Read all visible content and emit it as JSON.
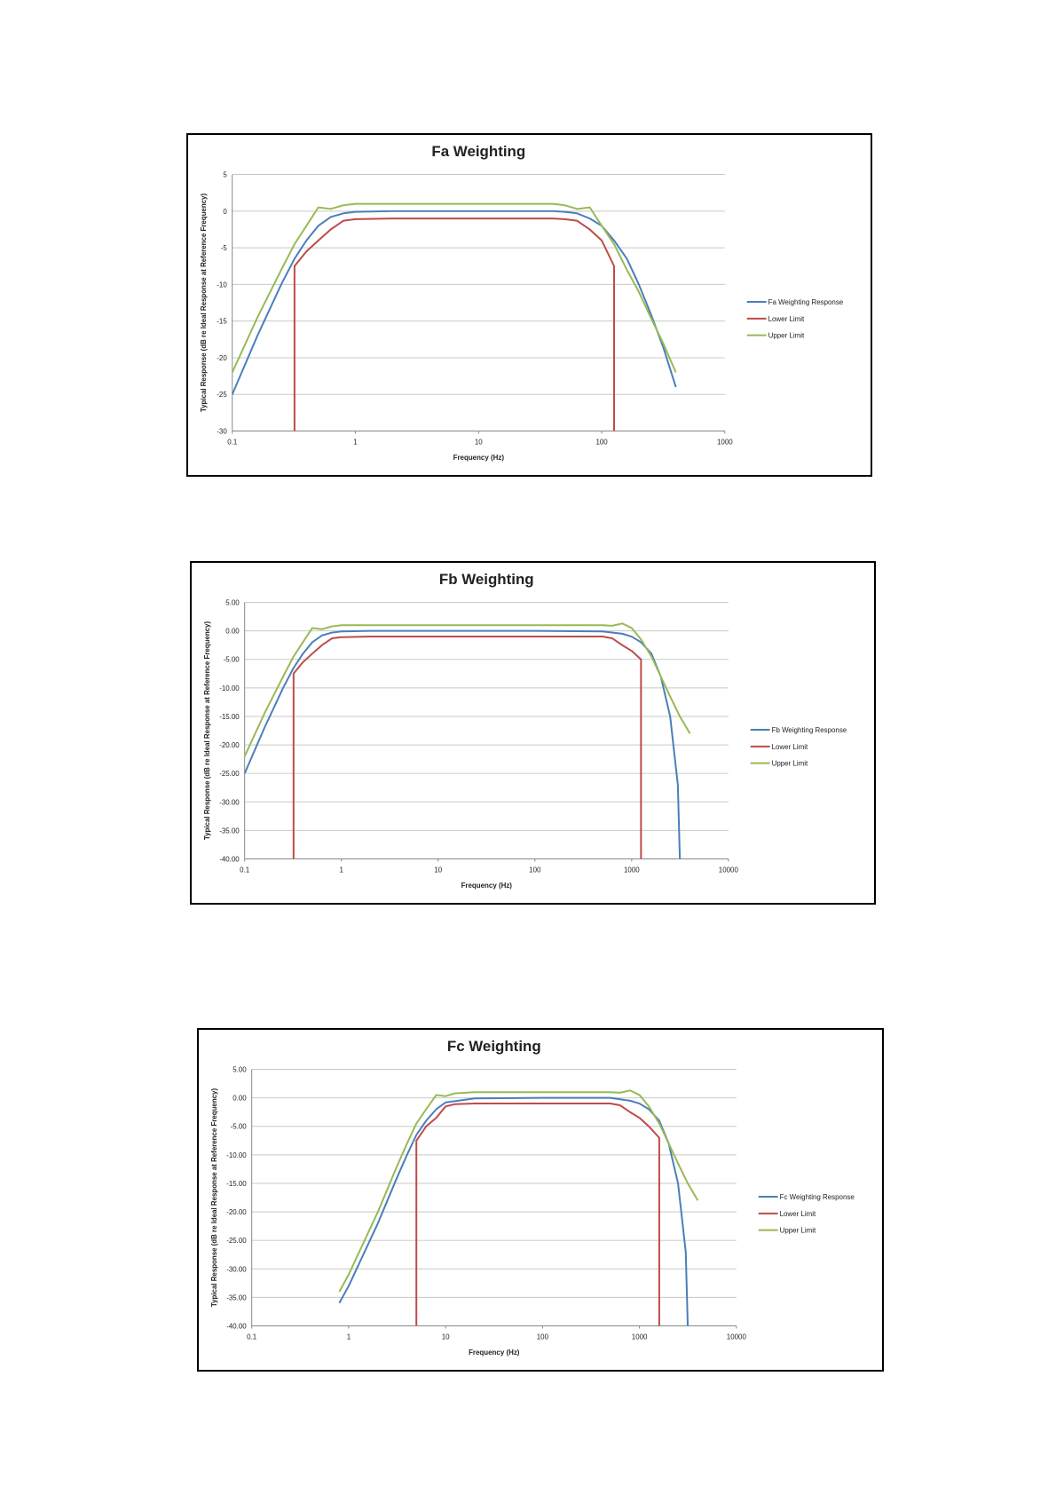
{
  "chart_data": [
    {
      "type": "line",
      "title": "Fa Weighting",
      "xlabel": "Frequency (Hz)",
      "ylabel": "Typical Response (dB re Ideal Response at Reference Frequency)",
      "xscale": "log",
      "xlim": [
        0.1,
        1000
      ],
      "ylim": [
        -30,
        5
      ],
      "x_tick_labels": [
        "0.1",
        "1",
        "10",
        "100",
        "1000"
      ],
      "y_ticks": [
        5,
        0,
        -5,
        -10,
        -15,
        -20,
        -25,
        -30
      ],
      "y_tick_labels": [
        "5",
        "0",
        "-5",
        "-10",
        "-15",
        "-20",
        "-25",
        "-30"
      ],
      "legend_position": "right",
      "series": [
        {
          "name": "Fa Weighting Response",
          "color": "#4a7ebb",
          "x": [
            0.1,
            0.16,
            0.25,
            0.32,
            0.4,
            0.5,
            0.63,
            0.8,
            1,
            2,
            5,
            10,
            20,
            40,
            50,
            63,
            80,
            100,
            126,
            160,
            200,
            250,
            315,
            400
          ],
          "y": [
            -25,
            -17,
            -10,
            -6.5,
            -4,
            -2,
            -0.8,
            -0.3,
            -0.1,
            0,
            0,
            0,
            0,
            0,
            -0.1,
            -0.3,
            -1,
            -2,
            -4,
            -6.5,
            -10,
            -14,
            -18.5,
            -24
          ]
        },
        {
          "name": "Lower Limit",
          "color": "#be4b48",
          "x": [
            0.32,
            0.32,
            0.4,
            0.5,
            0.63,
            0.8,
            1,
            2,
            10,
            40,
            50,
            63,
            80,
            100,
            126,
            126
          ],
          "y": [
            -30,
            -7.5,
            -5.5,
            -4,
            -2.5,
            -1.3,
            -1.1,
            -1,
            -1,
            -1,
            -1.1,
            -1.3,
            -2.5,
            -4,
            -7.5,
            -30
          ]
        },
        {
          "name": "Upper Limit",
          "color": "#98b954",
          "x": [
            0.1,
            0.16,
            0.25,
            0.32,
            0.4,
            0.5,
            0.63,
            0.8,
            1,
            2,
            10,
            40,
            50,
            63,
            80,
            100,
            126,
            160,
            200,
            250,
            315,
            400
          ],
          "y": [
            -22,
            -14.5,
            -8,
            -4.5,
            -2,
            0.5,
            0.3,
            0.8,
            1,
            1,
            1,
            1,
            0.8,
            0.3,
            0.5,
            -2,
            -4.5,
            -8,
            -11,
            -14.5,
            -18,
            -22
          ]
        }
      ]
    },
    {
      "type": "line",
      "title": "Fb Weighting",
      "xlabel": "Frequency (Hz)",
      "ylabel": "Typical Response (dB re Ideal Response at Reference Frequency)",
      "xscale": "log",
      "xlim": [
        0.1,
        10000
      ],
      "ylim": [
        -40,
        5
      ],
      "x_tick_labels": [
        "0.1",
        "1",
        "10",
        "100",
        "1000",
        "10000"
      ],
      "y_ticks": [
        5,
        0,
        -5,
        -10,
        -15,
        -20,
        -25,
        -30,
        -35,
        -40
      ],
      "y_tick_labels": [
        "5.00",
        "0.00",
        "-5.00",
        "-10.00",
        "-15.00",
        "-20.00",
        "-25.00",
        "-30.00",
        "-35.00",
        "-40.00"
      ],
      "legend_position": "right",
      "series": [
        {
          "name": "Fb Weighting Response",
          "color": "#4a7ebb",
          "x": [
            0.1,
            0.16,
            0.25,
            0.32,
            0.4,
            0.5,
            0.63,
            0.8,
            1,
            2,
            10,
            100,
            500,
            800,
            1000,
            1250,
            1600,
            2000,
            2500,
            3000,
            3150
          ],
          "y": [
            -25,
            -17,
            -10,
            -6.5,
            -4,
            -2,
            -0.8,
            -0.3,
            -0.1,
            0,
            0,
            0,
            -0.1,
            -0.5,
            -1,
            -2,
            -4,
            -8,
            -15,
            -27,
            -40
          ]
        },
        {
          "name": "Lower Limit",
          "color": "#be4b48",
          "x": [
            0.32,
            0.32,
            0.4,
            0.5,
            0.63,
            0.8,
            1,
            2,
            10,
            100,
            500,
            630,
            800,
            1000,
            1250,
            1250
          ],
          "y": [
            -40,
            -7.5,
            -5.5,
            -4,
            -2.5,
            -1.3,
            -1.1,
            -1,
            -1,
            -1,
            -1,
            -1.3,
            -2.5,
            -3.5,
            -5,
            -40
          ]
        },
        {
          "name": "Upper Limit",
          "color": "#98b954",
          "x": [
            0.1,
            0.16,
            0.25,
            0.32,
            0.4,
            0.5,
            0.63,
            0.8,
            1,
            2,
            10,
            100,
            500,
            630,
            800,
            1000,
            1250,
            1600,
            2000,
            2500,
            3150,
            4000
          ],
          "y": [
            -22,
            -14.5,
            -8,
            -4.5,
            -2,
            0.5,
            0.3,
            0.8,
            1,
            1,
            1,
            1,
            1,
            0.9,
            1.3,
            0.5,
            -1.5,
            -4.5,
            -8,
            -11.5,
            -15,
            -18
          ]
        }
      ]
    },
    {
      "type": "line",
      "title": "Fc Weighting",
      "xlabel": "Frequency (Hz)",
      "ylabel": "Typical Response (dB re Ideal Response at Reference Frequency)",
      "xscale": "log",
      "xlim": [
        0.1,
        10000
      ],
      "ylim": [
        -40,
        5
      ],
      "x_tick_labels": [
        "0.1",
        "1",
        "10",
        "100",
        "1000",
        "10000"
      ],
      "y_ticks": [
        5,
        0,
        -5,
        -10,
        -15,
        -20,
        -25,
        -30,
        -35,
        -40
      ],
      "y_tick_labels": [
        "5.00",
        "0.00",
        "-5.00",
        "-10.00",
        "-15.00",
        "-20.00",
        "-25.00",
        "-30.00",
        "-35.00",
        "-40.00"
      ],
      "legend_position": "right",
      "series": [
        {
          "name": "Fc Weighting Response",
          "color": "#4a7ebb",
          "x": [
            0.8,
            1,
            2,
            3.15,
            4,
            5,
            6.3,
            8,
            10,
            20,
            100,
            500,
            800,
            1000,
            1250,
            1600,
            2000,
            2500,
            3000,
            3150
          ],
          "y": [
            -36,
            -33,
            -22,
            -14,
            -10,
            -6.5,
            -4,
            -2,
            -0.8,
            -0.1,
            0,
            0,
            -0.5,
            -1,
            -2,
            -4,
            -8,
            -15,
            -27,
            -40
          ]
        },
        {
          "name": "Lower Limit",
          "color": "#be4b48",
          "x": [
            5,
            5,
            6.3,
            8,
            10,
            12.5,
            20,
            100,
            500,
            630,
            800,
            1000,
            1250,
            1600,
            1600
          ],
          "y": [
            -40,
            -7.5,
            -5,
            -3.5,
            -1.5,
            -1.1,
            -1,
            -1,
            -1,
            -1.3,
            -2.5,
            -3.5,
            -5,
            -7,
            -40
          ]
        },
        {
          "name": "Upper Limit",
          "color": "#98b954",
          "x": [
            0.8,
            1,
            2,
            3.15,
            4,
            5,
            6.3,
            8,
            10,
            12.5,
            20,
            100,
            500,
            630,
            800,
            1000,
            1250,
            1600,
            2000,
            2500,
            3150,
            4000
          ],
          "y": [
            -34,
            -31,
            -20,
            -12,
            -8,
            -4.5,
            -2,
            0.5,
            0.3,
            0.8,
            1,
            1,
            1,
            0.9,
            1.3,
            0.5,
            -1.5,
            -4.5,
            -8,
            -11.5,
            -15,
            -18
          ]
        }
      ]
    }
  ]
}
